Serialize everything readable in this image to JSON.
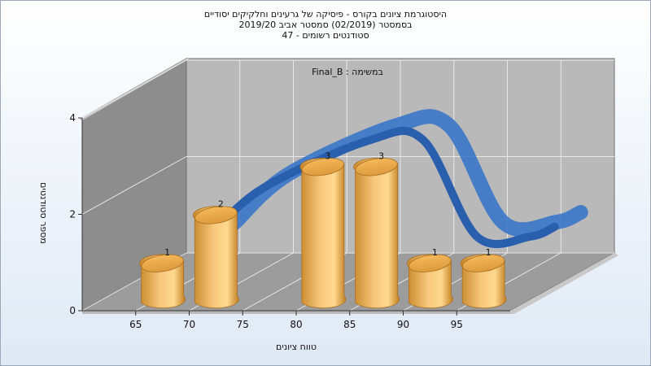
{
  "title_lines": [
    "היסטוגרמת ציונים בקורס - פיסיקה של גרעינים וחלקיקים יסודיים",
    "בסמסטר  (02/2019)  סמסטר אביב 2019/20",
    "סטודנטים רשומים - 47"
  ],
  "chart_data": {
    "type": "bar",
    "task_label": "במשימה : Final_B",
    "xlabel": "טווח ציונים",
    "ylabel": "מספר סטודנטים",
    "x_ticks": [
      "65",
      "70",
      "75",
      "80",
      "85",
      "90",
      "95"
    ],
    "y_ticks": [
      "0",
      "2",
      "4"
    ],
    "ylim": [
      0,
      4
    ],
    "bars": [
      {
        "x": 67.5,
        "value": 1
      },
      {
        "x": 72.5,
        "value": 2
      },
      {
        "x": 82.5,
        "value": 3
      },
      {
        "x": 87.5,
        "value": 3
      },
      {
        "x": 92.5,
        "value": 1
      },
      {
        "x": 97.5,
        "value": 1
      }
    ],
    "curve": "distribution-ribbon",
    "bar_color": "#e8a94a",
    "curve_color": "#3272c8",
    "grid": true
  }
}
